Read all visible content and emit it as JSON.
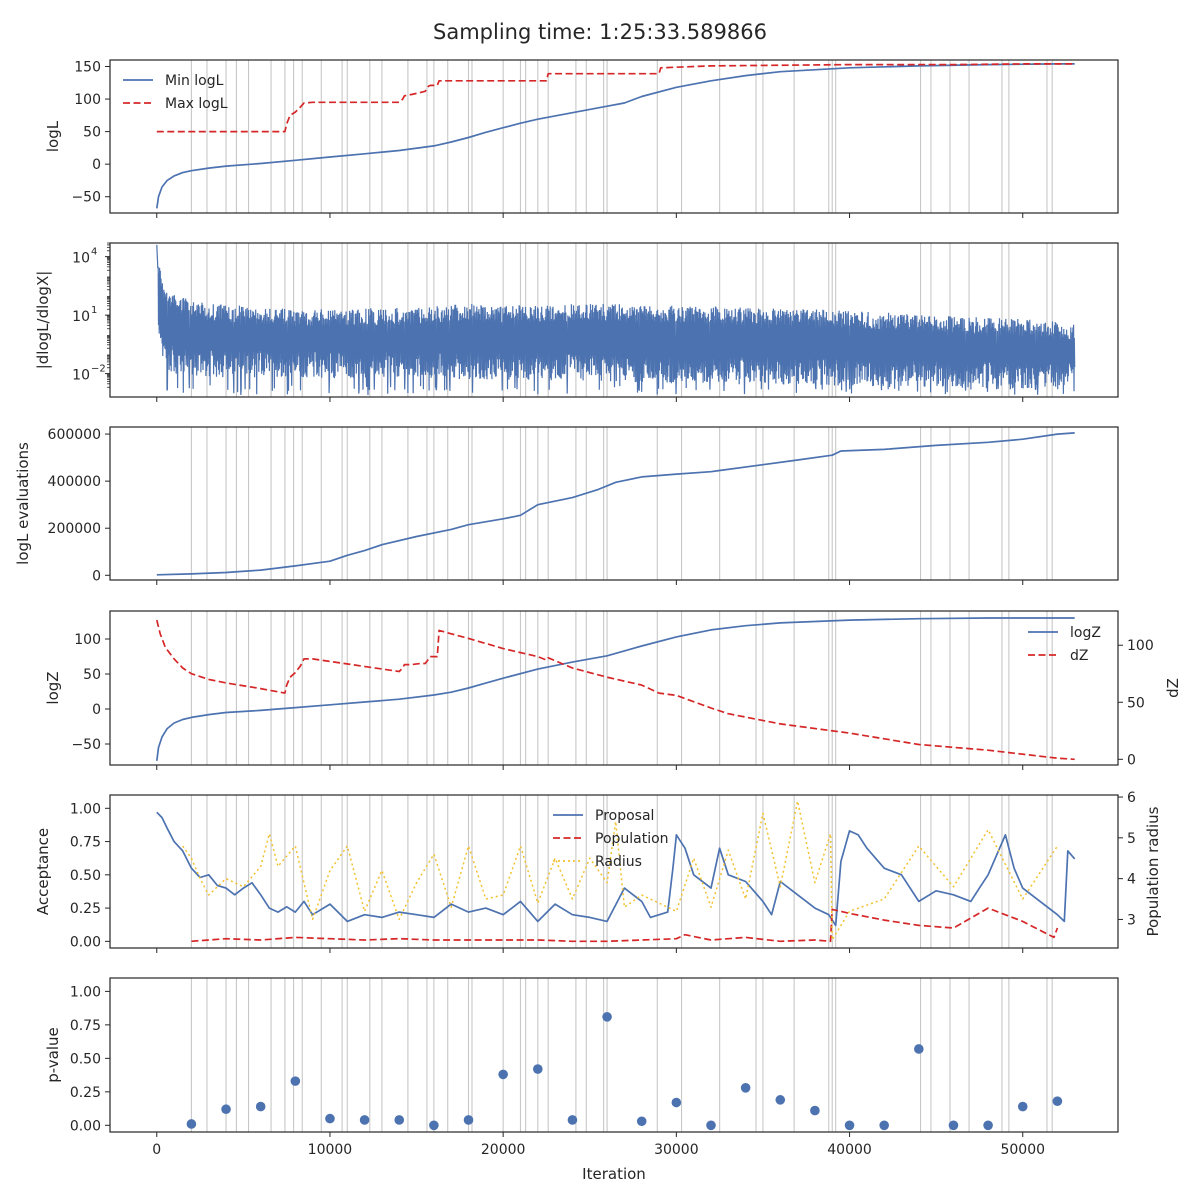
{
  "figure": {
    "suptitle": "Sampling time: 1:25:33.589866",
    "xlabel": "Iteration"
  },
  "colors": {
    "blue": "#4c72b0",
    "red": "#d62728",
    "yellow": "#f2c12e",
    "grid": "#c8c8c8",
    "axis": "#262626"
  },
  "chart_data": [
    {
      "id": "loglike",
      "type": "line",
      "ylabel": "logL",
      "xlim": [
        -2700,
        55500
      ],
      "ylim": [
        -75,
        160
      ],
      "yticks": [
        -50,
        0,
        50,
        100,
        150
      ],
      "ytick_labels": [
        "−50",
        "0",
        "50",
        "100",
        "150"
      ],
      "legend": {
        "position": "top-left",
        "entries": [
          "Min logL",
          "Max logL"
        ]
      },
      "series": [
        {
          "name": "Min logL",
          "style": "solid",
          "color": "blue",
          "x": [
            0,
            100,
            300,
            600,
            1000,
            1500,
            2000,
            3000,
            4000,
            6000,
            8000,
            10000,
            12000,
            14000,
            16000,
            17000,
            18000,
            19000,
            20000,
            21000,
            22000,
            24000,
            26000,
            27000,
            28000,
            30000,
            32000,
            34000,
            36000,
            40000,
            44000,
            48000,
            52000,
            53000
          ],
          "y": [
            -68,
            -50,
            -35,
            -25,
            -18,
            -13,
            -10,
            -6,
            -3,
            1,
            6,
            11,
            16,
            21,
            28,
            34,
            41,
            49,
            56,
            63,
            69,
            79,
            89,
            94,
            104,
            118,
            128,
            136,
            142,
            148,
            151,
            153,
            154,
            154
          ]
        },
        {
          "name": "Max logL",
          "style": "dashed",
          "color": "red",
          "x": [
            0,
            7400,
            7500,
            7700,
            8000,
            8300,
            8500,
            9000,
            14000,
            14200,
            14300,
            14700,
            15200,
            15500,
            15700,
            15800,
            16200,
            16300,
            22500,
            22600,
            29000,
            29100,
            30000,
            32000,
            40000,
            42000,
            46000,
            50000,
            53000
          ],
          "y": [
            50,
            50,
            62,
            75,
            80,
            88,
            94,
            95,
            95,
            100,
            105,
            107,
            110,
            112,
            120,
            121,
            121,
            128,
            128,
            139,
            139,
            148,
            149,
            151,
            153,
            153,
            153,
            154,
            154
          ]
        }
      ]
    },
    {
      "id": "gradient",
      "type": "line",
      "ylabel": "|dlogL/dlogX|",
      "yscale": "log",
      "ylim_log10": [
        -3.2,
        4.7
      ],
      "yticks": [
        0.01,
        10,
        10000
      ],
      "ytick_labels": [
        "10^-2",
        "10^1",
        "10^4"
      ],
      "noisy_band": {
        "x": [
          0,
          300,
          1000,
          3000,
          8000,
          15000,
          18000,
          20000,
          25000,
          30000,
          38000,
          45000,
          50000,
          53000
        ],
        "upper_log10": [
          4.6,
          2.8,
          2.1,
          1.6,
          1.3,
          1.4,
          1.6,
          1.5,
          1.6,
          1.5,
          1.3,
          1.0,
          0.8,
          0.6
        ],
        "lower_log10": [
          0.0,
          -1.6,
          -2.0,
          -2.2,
          -2.2,
          -2.3,
          -2.3,
          -2.3,
          -2.4,
          -2.5,
          -2.6,
          -2.7,
          -2.8,
          -2.6
        ],
        "spikes_to_log10": [
          -2.9,
          -3.1
        ]
      }
    },
    {
      "id": "evals",
      "type": "line",
      "ylabel": "logL evaluations",
      "ylim": [
        -20000,
        630000
      ],
      "yticks": [
        0,
        200000,
        400000,
        600000
      ],
      "ytick_labels": [
        "0",
        "200000",
        "400000",
        "600000"
      ],
      "series": [
        {
          "name": "",
          "color": "blue",
          "style": "solid",
          "x": [
            0,
            2000,
            4000,
            6000,
            8000,
            10000,
            11000,
            12000,
            13000,
            15000,
            17000,
            18000,
            20000,
            21000,
            22000,
            24000,
            25500,
            26500,
            28000,
            30000,
            32000,
            32500,
            35000,
            37000,
            39000,
            39500,
            42000,
            45000,
            48000,
            50000,
            52000,
            53000
          ],
          "y": [
            2000,
            6000,
            12000,
            22000,
            40000,
            60000,
            85000,
            105000,
            130000,
            165000,
            195000,
            215000,
            240000,
            255000,
            300000,
            330000,
            365000,
            395000,
            418000,
            430000,
            440000,
            445000,
            470000,
            490000,
            510000,
            528000,
            535000,
            552000,
            565000,
            578000,
            600000,
            605000
          ]
        }
      ]
    },
    {
      "id": "evidence",
      "type": "line",
      "ylabel": "logZ",
      "ylabel_right": "dZ",
      "ylim": [
        -80,
        140
      ],
      "yticks": [
        -50,
        0,
        50,
        100
      ],
      "ytick_labels": [
        "−50",
        "0",
        "50",
        "100"
      ],
      "ylim_right": [
        -5,
        130
      ],
      "yticks_right": [
        0,
        50,
        100
      ],
      "legend": {
        "position": "top-right",
        "entries": [
          "logZ",
          "dZ"
        ]
      },
      "series": [
        {
          "name": "logZ",
          "axis": "left",
          "style": "solid",
          "color": "blue",
          "x": [
            0,
            100,
            300,
            600,
            1000,
            1500,
            2000,
            3000,
            4000,
            6000,
            8000,
            10000,
            12000,
            14000,
            16000,
            17000,
            18000,
            19000,
            20000,
            22000,
            24000,
            26000,
            28000,
            30000,
            32000,
            34000,
            36000,
            40000,
            44000,
            48000,
            52000,
            53000
          ],
          "y": [
            -74,
            -55,
            -40,
            -28,
            -20,
            -15,
            -12,
            -8,
            -5,
            -2,
            2,
            6,
            10,
            14,
            20,
            24,
            30,
            37,
            44,
            57,
            67,
            76,
            90,
            103,
            113,
            119,
            123,
            127,
            129,
            130,
            130,
            130
          ]
        },
        {
          "name": "dZ",
          "axis": "right",
          "style": "dashed",
          "color": "red",
          "x": [
            0,
            200,
            500,
            1000,
            1500,
            2000,
            3000,
            4000,
            6000,
            7400,
            7500,
            7700,
            8000,
            8300,
            8500,
            9000,
            14000,
            14200,
            14300,
            14700,
            15200,
            15500,
            15700,
            15800,
            16200,
            16300,
            17000,
            18000,
            20000,
            22000,
            22500,
            22600,
            24000,
            26000,
            28000,
            29000,
            30000,
            32000,
            33000,
            36000,
            40000,
            44000,
            48000,
            52000,
            53000
          ],
          "y": [
            122,
            110,
            98,
            88,
            80,
            75,
            70,
            67,
            62,
            58,
            65,
            72,
            76,
            82,
            88,
            88,
            77,
            80,
            83,
            83,
            84,
            84,
            88,
            90,
            90,
            113,
            110,
            106,
            97,
            90,
            87,
            89,
            80,
            72,
            65,
            58,
            56,
            45,
            40,
            31,
            23,
            13,
            8,
            1,
            0
          ]
        }
      ]
    },
    {
      "id": "acceptance",
      "type": "line",
      "ylabel": "Acceptance",
      "ylabel_right": "Population radius",
      "ylim": [
        -0.05,
        1.1
      ],
      "yticks": [
        0,
        0.25,
        0.5,
        0.75,
        1.0
      ],
      "ytick_labels": [
        "0.00",
        "0.25",
        "0.50",
        "0.75",
        "1.00"
      ],
      "ylim_right": [
        2.3,
        6.05
      ],
      "yticks_right": [
        3,
        4,
        5,
        6
      ],
      "legend": {
        "position": "top-center",
        "entries": [
          "Proposal",
          "Population",
          "Radius"
        ]
      },
      "series": [
        {
          "name": "Proposal",
          "axis": "left",
          "style": "solid",
          "color": "blue",
          "x": [
            0,
            300,
            600,
            1000,
            1500,
            2000,
            2500,
            3000,
            3500,
            4000,
            4500,
            5000,
            5500,
            6000,
            6500,
            7000,
            7500,
            8000,
            8500,
            9000,
            10000,
            11000,
            12000,
            13000,
            14000,
            15000,
            16000,
            17000,
            18000,
            19000,
            20000,
            21000,
            22000,
            23000,
            24000,
            25000,
            26000,
            27000,
            28000,
            28500,
            29500,
            29800,
            30000,
            30500,
            31000,
            32000,
            32500,
            33000,
            34000,
            35000,
            35500,
            36000,
            37000,
            38000,
            38800,
            39200,
            39500,
            40000,
            40500,
            41000,
            42000,
            43000,
            44000,
            45000,
            46000,
            47000,
            47500,
            48000,
            49000,
            49500,
            50000,
            51000,
            52000,
            52400,
            52600,
            53000
          ],
          "y": [
            0.97,
            0.93,
            0.85,
            0.75,
            0.68,
            0.55,
            0.48,
            0.5,
            0.42,
            0.4,
            0.35,
            0.4,
            0.44,
            0.35,
            0.25,
            0.22,
            0.26,
            0.22,
            0.3,
            0.2,
            0.28,
            0.15,
            0.2,
            0.18,
            0.22,
            0.2,
            0.18,
            0.28,
            0.22,
            0.25,
            0.2,
            0.3,
            0.15,
            0.28,
            0.2,
            0.18,
            0.15,
            0.4,
            0.3,
            0.18,
            0.22,
            0.55,
            0.8,
            0.7,
            0.5,
            0.4,
            0.7,
            0.5,
            0.45,
            0.3,
            0.2,
            0.45,
            0.35,
            0.25,
            0.2,
            0.12,
            0.6,
            0.83,
            0.8,
            0.7,
            0.55,
            0.5,
            0.3,
            0.38,
            0.35,
            0.3,
            0.4,
            0.5,
            0.8,
            0.55,
            0.4,
            0.3,
            0.2,
            0.15,
            0.68,
            0.62
          ]
        },
        {
          "name": "Population",
          "axis": "left",
          "style": "dashed",
          "color": "red",
          "x": [
            2000,
            4000,
            6000,
            8000,
            10000,
            12000,
            14000,
            16000,
            18000,
            20000,
            22000,
            24000,
            26000,
            28000,
            30000,
            30500,
            32000,
            34000,
            36000,
            38000,
            38900,
            39000,
            40000,
            42000,
            44000,
            46000,
            48000,
            50000,
            51800,
            52000
          ],
          "y": [
            0.0,
            0.02,
            0.01,
            0.03,
            0.02,
            0.01,
            0.02,
            0.01,
            0.01,
            0.01,
            0.01,
            0.0,
            0.0,
            0.01,
            0.02,
            0.05,
            0.01,
            0.03,
            0.0,
            0.01,
            0.0,
            0.24,
            0.21,
            0.16,
            0.12,
            0.1,
            0.25,
            0.15,
            0.03,
            0.1
          ]
        },
        {
          "name": "Radius",
          "axis": "right",
          "style": "dotted",
          "color": "yellow",
          "x": [
            1500,
            2000,
            2500,
            3000,
            4000,
            5000,
            6000,
            6500,
            7000,
            8000,
            9000,
            10000,
            11000,
            12000,
            13000,
            14000,
            15000,
            16000,
            17000,
            18000,
            19000,
            20000,
            21000,
            22000,
            23000,
            24000,
            25000,
            26000,
            26500,
            27000,
            28000,
            29000,
            30000,
            31000,
            32000,
            33000,
            34000,
            35000,
            36000,
            37000,
            38000,
            38900,
            39000,
            40000,
            42000,
            44000,
            46000,
            48000,
            50000,
            52000
          ],
          "y": [
            4.8,
            4.5,
            4.0,
            3.6,
            4.0,
            3.8,
            4.3,
            5.1,
            4.3,
            4.8,
            3.0,
            4.2,
            4.8,
            3.2,
            4.2,
            3.0,
            3.9,
            4.6,
            3.3,
            4.8,
            3.5,
            3.6,
            4.8,
            3.4,
            4.5,
            3.5,
            4.5,
            3.9,
            5.4,
            3.3,
            3.6,
            3.4,
            3.2,
            4.5,
            3.3,
            4.7,
            3.5,
            5.6,
            3.8,
            5.9,
            3.9,
            5.1,
            2.5,
            3.2,
            3.5,
            4.8,
            3.8,
            5.2,
            3.5,
            4.8
          ]
        }
      ]
    },
    {
      "id": "pvalue",
      "type": "scatter",
      "ylabel": "p-value",
      "ylim": [
        -0.05,
        1.1
      ],
      "yticks": [
        0,
        0.25,
        0.5,
        0.75,
        1.0
      ],
      "ytick_labels": [
        "0.00",
        "0.25",
        "0.50",
        "0.75",
        "1.00"
      ],
      "xticks": [
        0,
        10000,
        20000,
        30000,
        40000,
        50000
      ],
      "xtick_labels": [
        "0",
        "10000",
        "20000",
        "30000",
        "40000",
        "50000"
      ],
      "x": [
        2000,
        4000,
        6000,
        8000,
        10000,
        12000,
        14000,
        16000,
        18000,
        20000,
        22000,
        24000,
        26000,
        28000,
        30000,
        32000,
        34000,
        36000,
        38000,
        40000,
        42000,
        44000,
        46000,
        48000,
        50000,
        52000
      ],
      "y": [
        0.01,
        0.12,
        0.14,
        0.33,
        0.05,
        0.04,
        0.04,
        0.0,
        0.04,
        0.38,
        0.42,
        0.04,
        0.81,
        0.03,
        0.17,
        0.0,
        0.28,
        0.19,
        0.11,
        0.0,
        0.0,
        0.57,
        0.0,
        0.0,
        0.14,
        0.18
      ]
    }
  ],
  "restart_lines_x": [
    2000,
    2900,
    4000,
    4600,
    5300,
    6600,
    7400,
    7900,
    8400,
    9500,
    10700,
    11000,
    12300,
    13000,
    14500,
    15600,
    16000,
    16800,
    18000,
    18200,
    20000,
    21000,
    21300,
    22000,
    22600,
    24200,
    24800,
    25800,
    26000,
    28900,
    30300,
    32500,
    34600,
    35000,
    36800,
    38800,
    39000,
    39200,
    44100,
    44700,
    45800,
    46900,
    48800,
    49200,
    51400,
    51700
  ]
}
